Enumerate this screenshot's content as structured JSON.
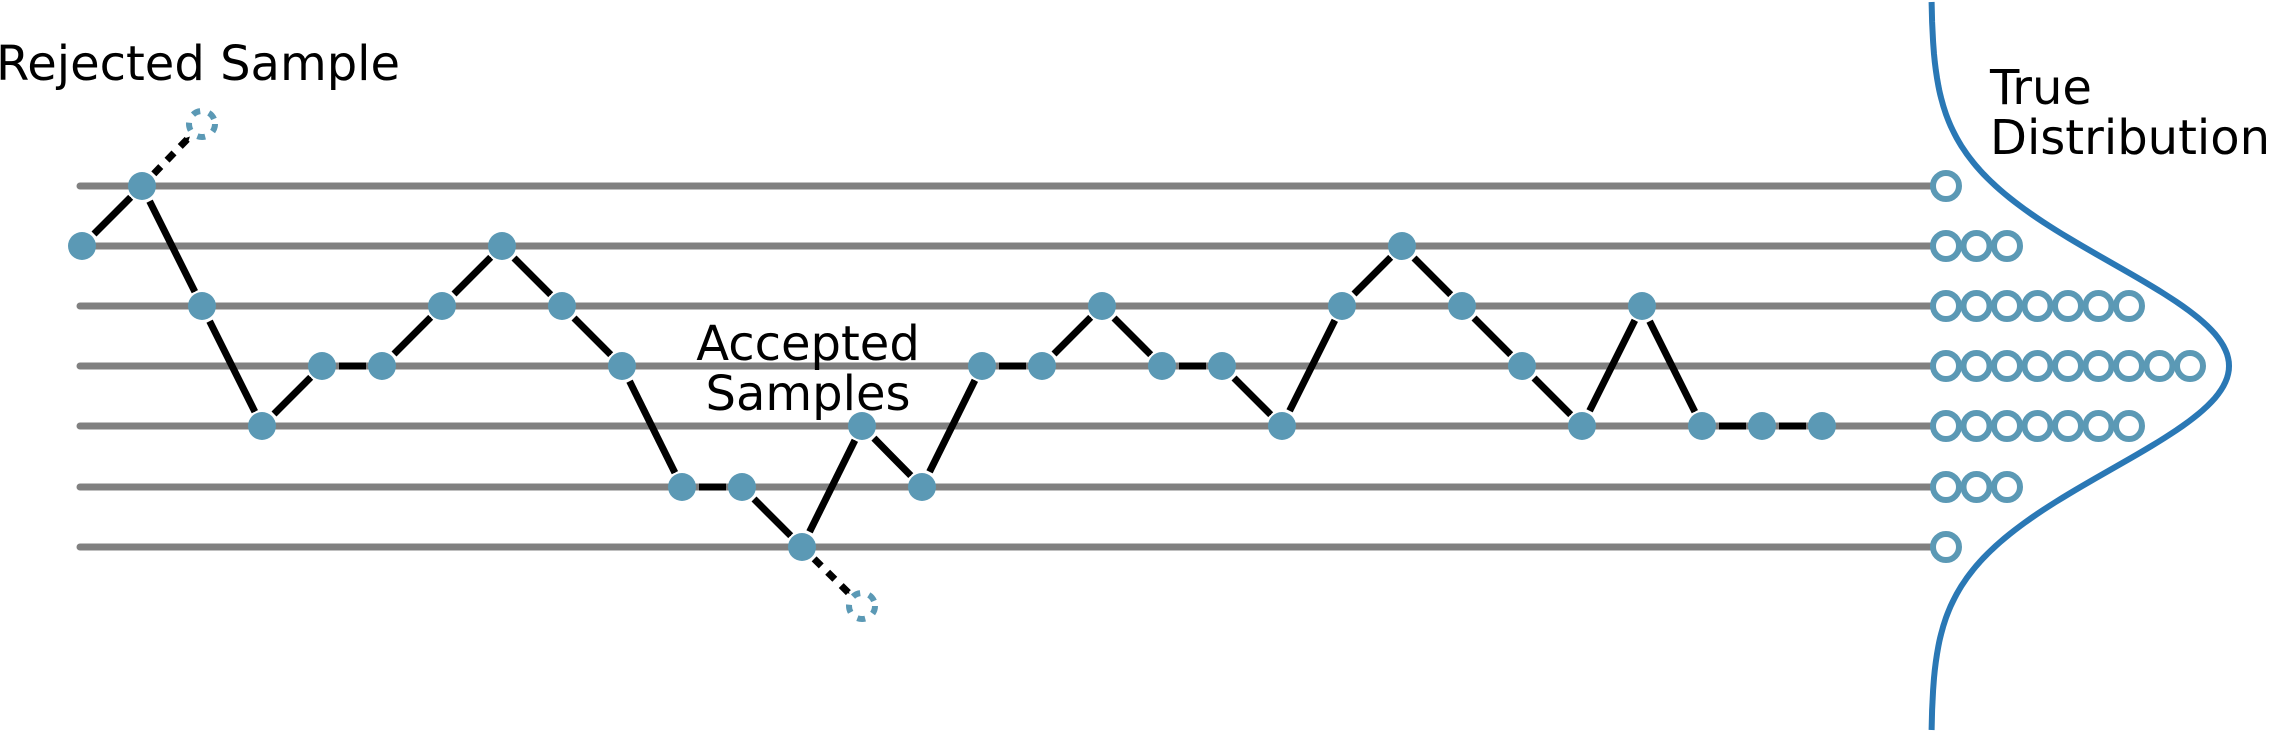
{
  "labels": {
    "rejected": "Rejected Sample",
    "accepted_line1": "Accepted",
    "accepted_line2": "Samples",
    "true_line1": "True",
    "true_line2": "Distribution"
  },
  "colors": {
    "line": "#808080",
    "node": "#5b99b5",
    "arrow": "#000000",
    "curve": "#2a78b5"
  },
  "histogram_counts": [
    1,
    3,
    7,
    9,
    7,
    3,
    1
  ]
}
